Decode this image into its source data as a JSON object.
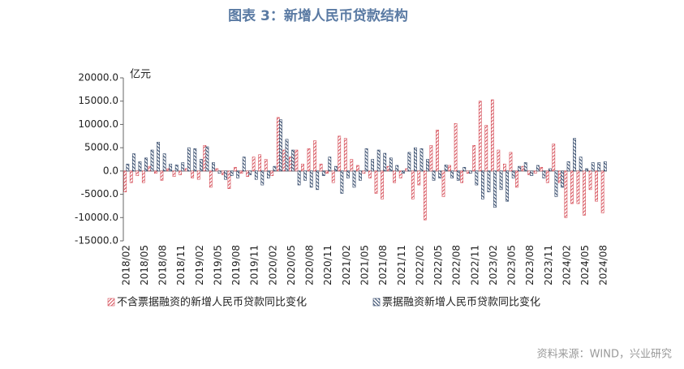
{
  "chart_data": {
    "type": "bar",
    "title": "图表 3：新增人民币贷款结构",
    "y_label": "亿元",
    "source": "资料来源：WIND，兴业研究",
    "categories": [
      "2018/02",
      null,
      null,
      "2018/05",
      null,
      null,
      "2018/08",
      null,
      null,
      "2018/11",
      null,
      null,
      "2019/02",
      null,
      null,
      "2019/05",
      null,
      null,
      "2019/08",
      null,
      null,
      "2019/11",
      null,
      null,
      "2020/02",
      null,
      null,
      "2020/05",
      null,
      null,
      "2020/08",
      null,
      null,
      "2020/11",
      null,
      null,
      "2021/02",
      null,
      null,
      "2021/05",
      null,
      null,
      "2021/08",
      null,
      null,
      "2021/11",
      null,
      null,
      "2022/02",
      null,
      null,
      "2022/05",
      null,
      null,
      "2022/08",
      null,
      null,
      "2022/11",
      null,
      null,
      "2023/02",
      null,
      null,
      "2023/05",
      null,
      null,
      "2023/08",
      null,
      null,
      "2023/11",
      null,
      null,
      "2024/02",
      null,
      null,
      "2024/05",
      null,
      null,
      "2024/08"
    ],
    "series": [
      {
        "name": "不含票据融资的新增人民币贷款同比变化",
        "color": "#d6505a",
        "values": [
          -4500,
          -2500,
          -1000,
          -2500,
          1000,
          -500,
          -2000,
          500,
          -1200,
          -800,
          500,
          -1500,
          -1800,
          5500,
          -3500,
          500,
          -800,
          -3800,
          800,
          -500,
          -1200,
          3000,
          3500,
          2500,
          -1000,
          11500,
          4500,
          3000,
          4500,
          1500,
          4800,
          6500,
          1500,
          -500,
          -2500,
          7500,
          7000,
          2500,
          1200,
          -500,
          -1500,
          -4800,
          -6000,
          1000,
          -2500,
          -1500,
          500,
          -6000,
          -3000,
          -10500,
          5500,
          8800,
          -5500,
          1200,
          10200,
          -2500,
          -500,
          5500,
          15000,
          9800,
          15300,
          4500,
          1500,
          4000,
          -3500,
          1000,
          -800,
          -500,
          800,
          -2500,
          5800,
          -2500,
          -10000,
          -7000,
          -7000,
          -9500,
          -4000,
          -6500,
          -9000
        ]
      },
      {
        "name": "票据融资新增人民币贷款同比变化",
        "color": "#2e4466",
        "values": [
          1500,
          3700,
          2000,
          2800,
          4500,
          6200,
          3700,
          1500,
          1300,
          1800,
          5000,
          4800,
          2500,
          5200,
          1800,
          -500,
          -1800,
          -1000,
          -1500,
          3000,
          -800,
          -1800,
          -3000,
          -1500,
          1000,
          11000,
          6800,
          4500,
          -3000,
          -2000,
          -3500,
          -4000,
          -1000,
          3000,
          1000,
          -4800,
          -1500,
          -3500,
          -2000,
          4800,
          2500,
          4500,
          3800,
          2800,
          1200,
          -500,
          4000,
          5000,
          4800,
          2500,
          -2000,
          -1500,
          1300,
          -1500,
          -2000,
          800,
          -500,
          -3000,
          -6000,
          -4500,
          -7800,
          -4000,
          -6500,
          -1500,
          1000,
          1800,
          -1000,
          1200,
          -1500,
          500,
          -5500,
          -3500,
          2000,
          7000,
          3000,
          500,
          1800,
          1800,
          2000
        ]
      }
    ],
    "ylim": [
      -15000,
      20000
    ],
    "yticks": [
      {
        "value": -15000,
        "label": "-15000.0"
      },
      {
        "value": -10000,
        "label": "-10000.0"
      },
      {
        "value": -5000,
        "label": "-5000.0"
      },
      {
        "value": 0,
        "label": "0.0"
      },
      {
        "value": 5000,
        "label": "5000.0"
      },
      {
        "value": 10000,
        "label": "10000.0"
      },
      {
        "value": 15000,
        "label": "15000.0"
      },
      {
        "value": 20000,
        "label": "20000.0"
      }
    ],
    "legend": "bottom"
  }
}
